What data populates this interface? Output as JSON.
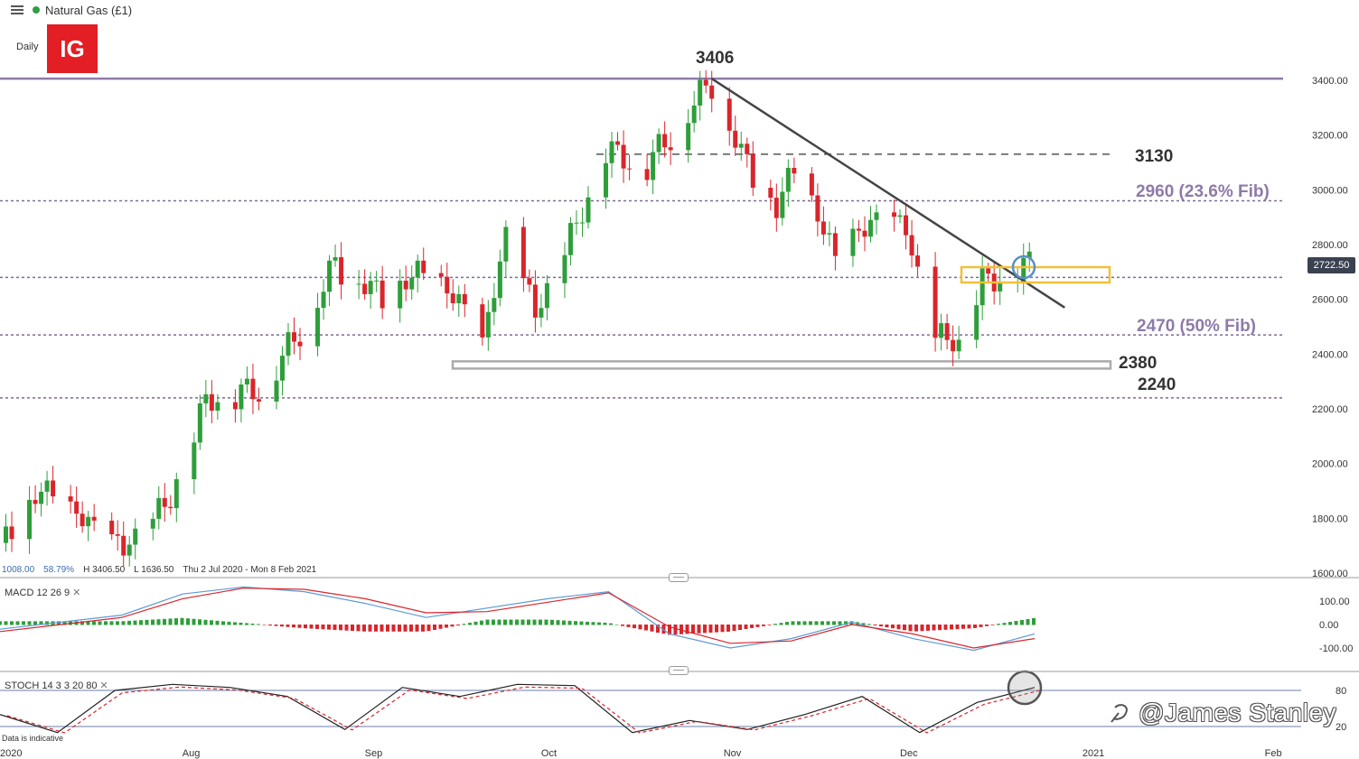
{
  "header": {
    "instrument": "Natural Gas (£1)",
    "timeframe": "Daily",
    "logo_text": "IG",
    "status_color": "#2f9e44"
  },
  "ohlc": {
    "value1": "1008.00",
    "value2": "58.79%",
    "high": "H 3406.50",
    "low": "L 1636.50",
    "range": "Thu 2 Jul 2020 - Mon 8 Feb 2021"
  },
  "current_price": "2722.50",
  "indicators": {
    "macd_label": "MACD 12 26 9",
    "stoch_label": "STOCH 14 3 3 20 80"
  },
  "footnote": "Data is indicative",
  "watermark": "@James Stanley",
  "colors": {
    "up": "#2e9e3a",
    "down": "#d9252b",
    "resistance": "#8e7aa8",
    "trendline": "#444444",
    "box_yellow": "#f2c037",
    "circle_blue": "#5a8fc8",
    "macd_line": "#5b9bd5",
    "signal_line": "#d9252b"
  },
  "chart_data": [
    {
      "type": "candlestick",
      "title": "Natural Gas (£1)",
      "timeframe": "Daily",
      "x_ticks": [
        "2020",
        "Aug",
        "Sep",
        "Oct",
        "Nov",
        "Dec",
        "2021",
        "Feb"
      ],
      "y_ticks": [
        1600,
        1800,
        2000,
        2200,
        2400,
        2600,
        2800,
        3000,
        3200,
        3400
      ],
      "ylim": [
        1600,
        3450
      ],
      "levels": [
        {
          "value": 3406,
          "label": "3406",
          "style": "solid"
        },
        {
          "value": 3130,
          "label": "3130",
          "style": "dashed"
        },
        {
          "value": 2960,
          "label": "2960 (23.6% Fib)",
          "style": "dotted"
        },
        {
          "value": 2680,
          "label": "",
          "style": "dotted"
        },
        {
          "value": 2470,
          "label": "2470 (50% Fib)",
          "style": "dotted"
        },
        {
          "value": 2380,
          "label": "2380",
          "style": "box"
        },
        {
          "value": 2240,
          "label": "2240",
          "style": "dotted"
        }
      ],
      "trendline": {
        "from": {
          "date": "2020-10-30",
          "value": 3406
        },
        "to": {
          "date": "2020-12-29",
          "value": 2570
        }
      },
      "key_points": [
        {
          "date": "2020-07-02",
          "close": 1710
        },
        {
          "date": "2020-07-08",
          "close": 1900
        },
        {
          "date": "2020-07-22",
          "close": 1680
        },
        {
          "date": "2020-07-30",
          "close": 1860
        },
        {
          "date": "2020-08-05",
          "close": 2220
        },
        {
          "date": "2020-08-14",
          "close": 2260
        },
        {
          "date": "2020-08-20",
          "close": 2440
        },
        {
          "date": "2020-08-27",
          "close": 2720
        },
        {
          "date": "2020-09-04",
          "close": 2600
        },
        {
          "date": "2020-09-11",
          "close": 2700
        },
        {
          "date": "2020-09-18",
          "close": 2560
        },
        {
          "date": "2020-09-21",
          "close": 2420
        },
        {
          "date": "2020-09-25",
          "close": 2830
        },
        {
          "date": "2020-09-30",
          "close": 2540
        },
        {
          "date": "2020-10-07",
          "close": 2860
        },
        {
          "date": "2020-10-12",
          "close": 3130
        },
        {
          "date": "2020-10-19",
          "close": 3080
        },
        {
          "date": "2020-10-26",
          "close": 3280
        },
        {
          "date": "2020-10-30",
          "close": 3390
        },
        {
          "date": "2020-11-04",
          "close": 3120
        },
        {
          "date": "2020-11-10",
          "close": 2920
        },
        {
          "date": "2020-11-13",
          "close": 3080
        },
        {
          "date": "2020-11-20",
          "close": 2750
        },
        {
          "date": "2020-11-27",
          "close": 2890
        },
        {
          "date": "2020-12-02",
          "close": 2850
        },
        {
          "date": "2020-12-07",
          "close": 2450
        },
        {
          "date": "2020-12-11",
          "close": 2440
        },
        {
          "date": "2020-12-15",
          "close": 2650
        },
        {
          "date": "2020-12-21",
          "close": 2700
        },
        {
          "date": "2020-12-24",
          "close": 2722.5
        }
      ]
    },
    {
      "type": "line",
      "title": "MACD 12 26 9",
      "y_ticks": [
        100,
        0,
        -100
      ],
      "series": [
        {
          "name": "MACD",
          "values": [
            -20,
            10,
            40,
            130,
            160,
            140,
            90,
            30,
            70,
            110,
            140,
            -40,
            -100,
            -60,
            10,
            -60,
            -110,
            -40
          ]
        },
        {
          "name": "Signal",
          "values": [
            -30,
            0,
            30,
            110,
            155,
            150,
            110,
            50,
            55,
            95,
            135,
            -10,
            -80,
            -70,
            0,
            -40,
            -100,
            -60
          ]
        }
      ]
    },
    {
      "type": "line",
      "title": "STOCH 14 3 3 20 80",
      "y_ticks": [
        80,
        20
      ],
      "series": [
        {
          "name": "%K",
          "values": [
            40,
            10,
            80,
            90,
            85,
            70,
            15,
            85,
            70,
            90,
            88,
            10,
            30,
            15,
            40,
            70,
            10,
            60,
            85
          ]
        }
      ]
    }
  ]
}
